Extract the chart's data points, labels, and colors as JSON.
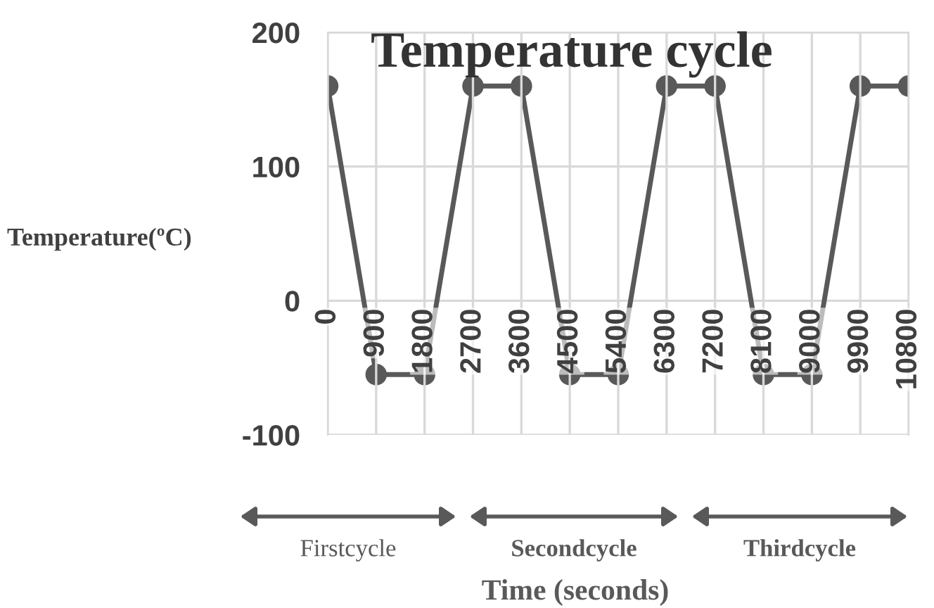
{
  "chart_data": {
    "type": "line",
    "title": "Temperature cycle",
    "xlabel": "Time (seconds)",
    "ylabel": "Temperature(ºC)",
    "categories": [
      "0",
      "900",
      "1800",
      "2700",
      "3600",
      "4500",
      "5400",
      "6300",
      "7200",
      "8100",
      "9000",
      "9900",
      "10800"
    ],
    "series": [
      {
        "color": "#595959",
        "values": [
          160,
          -55,
          -55,
          160,
          160,
          -55,
          -55,
          160,
          160,
          -55,
          -55,
          160,
          160
        ]
      }
    ],
    "ylim": [
      -100,
      200
    ],
    "yticks": [
      -100,
      0,
      100,
      200
    ],
    "grid": true,
    "marker": "circle",
    "line_style": "solid",
    "legend": false,
    "annotations": [
      "Firstcycle",
      "Secondcycle",
      "Thirdcycle"
    ]
  }
}
